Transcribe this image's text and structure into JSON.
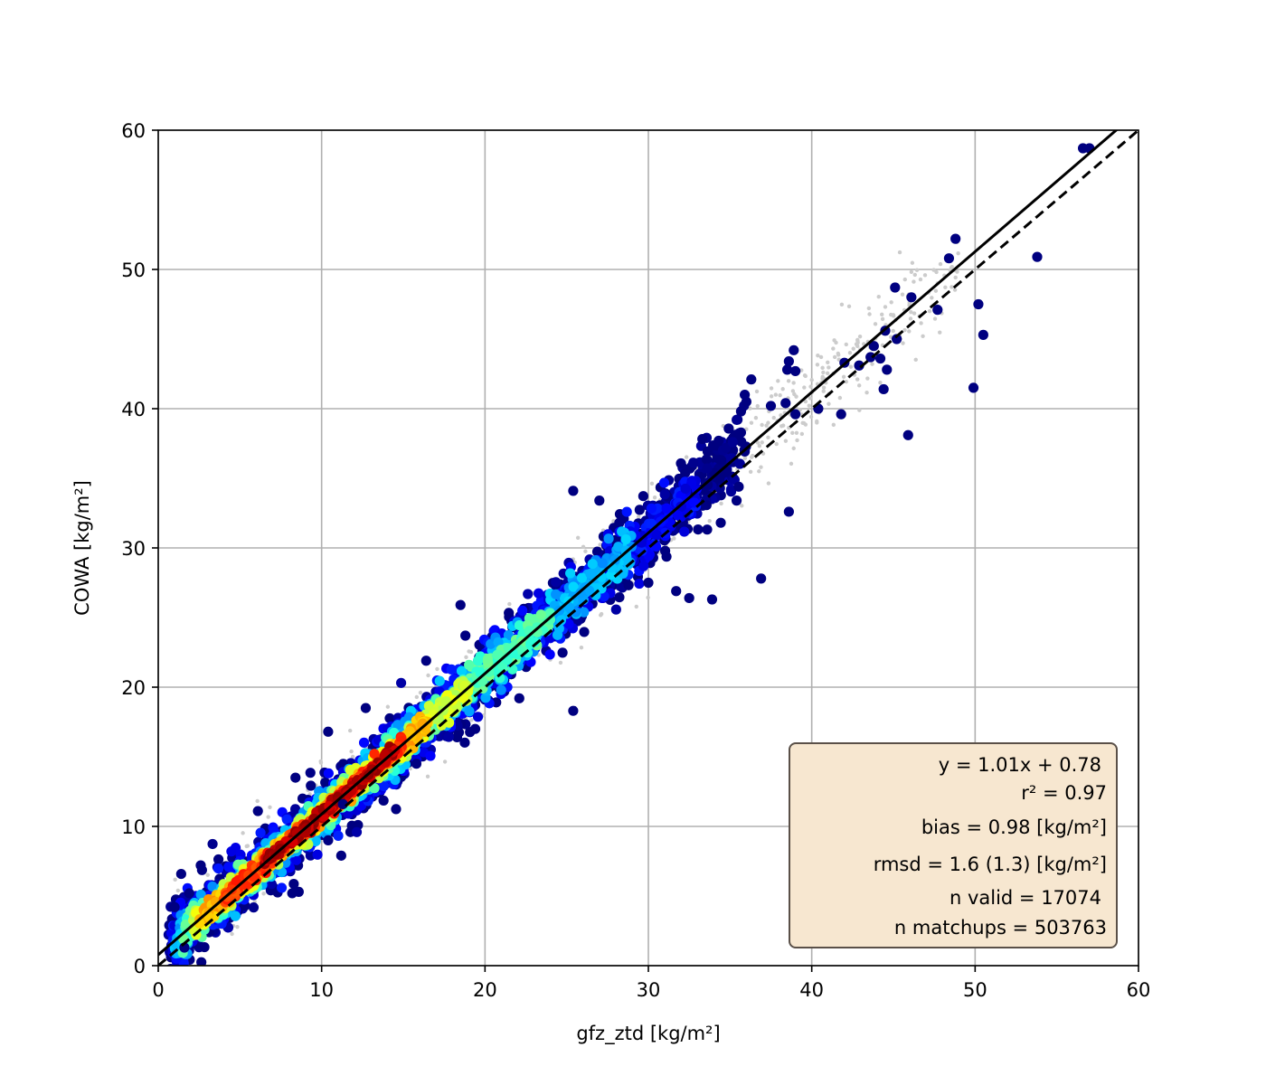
{
  "chart_data": {
    "type": "scatter",
    "title": "",
    "xlabel": "gfz_ztd [kg/m²]",
    "ylabel": "COWA [kg/m²]",
    "xlim": [
      0,
      60
    ],
    "ylim": [
      0,
      60
    ],
    "xticks": [
      "0",
      "10",
      "20",
      "30",
      "40",
      "50",
      "60"
    ],
    "yticks": [
      "0",
      "10",
      "20",
      "30",
      "40",
      "50",
      "60"
    ],
    "grid": true,
    "colormap": "jet (point density)",
    "fit_line": {
      "slope": 1.01,
      "intercept": 0.78,
      "style": "solid",
      "color": "#000000"
    },
    "identity_line": {
      "slope": 1.0,
      "intercept": 0.0,
      "style": "dashed",
      "color": "#000000"
    },
    "stats_box": {
      "placement": "bottom-right",
      "fill": "#f7e7d0",
      "lines": [
        "y = 1.01x + 0.78",
        "r² = 0.97",
        "bias = 0.98 [kg/m²]",
        "rmsd = 1.6 (1.3) [kg/m²]",
        "n valid = 17074",
        "n matchups = 503763"
      ]
    },
    "outlier_points": [
      [
        56.6,
        58.7
      ],
      [
        57.0,
        58.7
      ],
      [
        48.8,
        52.2
      ],
      [
        48.4,
        50.8
      ],
      [
        53.8,
        50.9
      ],
      [
        50.2,
        47.5
      ],
      [
        50.5,
        45.3
      ],
      [
        49.9,
        41.5
      ],
      [
        45.9,
        38.1
      ],
      [
        45.1,
        48.7
      ],
      [
        46.1,
        48.0
      ],
      [
        44.5,
        45.6
      ],
      [
        43.8,
        44.5
      ],
      [
        44.2,
        43.6
      ],
      [
        43.6,
        43.7
      ],
      [
        44.6,
        42.8
      ],
      [
        42.9,
        43.1
      ],
      [
        42.0,
        43.3
      ],
      [
        44.4,
        41.4
      ],
      [
        41.8,
        39.6
      ],
      [
        47.7,
        47.1
      ],
      [
        45.2,
        45.0
      ],
      [
        38.9,
        44.2
      ],
      [
        38.6,
        43.4
      ],
      [
        38.5,
        42.8
      ],
      [
        39.0,
        42.7
      ],
      [
        36.3,
        42.1
      ],
      [
        35.9,
        41.0
      ],
      [
        36.0,
        40.5
      ],
      [
        37.5,
        40.2
      ],
      [
        38.4,
        40.4
      ],
      [
        40.4,
        40.0
      ],
      [
        39.0,
        39.6
      ],
      [
        38.6,
        32.6
      ],
      [
        36.9,
        27.8
      ],
      [
        35.4,
        33.4
      ],
      [
        25.4,
        34.1
      ],
      [
        27.0,
        33.4
      ],
      [
        18.5,
        25.9
      ],
      [
        18.8,
        23.7
      ],
      [
        16.4,
        21.9
      ],
      [
        12.7,
        18.5
      ],
      [
        10.4,
        16.8
      ],
      [
        8.4,
        13.5
      ],
      [
        6.1,
        11.1
      ],
      [
        2.6,
        7.2
      ],
      [
        1.9,
        5.2
      ],
      [
        1.0,
        4.2
      ],
      [
        33.9,
        26.3
      ],
      [
        31.7,
        26.9
      ],
      [
        32.5,
        26.4
      ],
      [
        30.0,
        27.5
      ],
      [
        25.4,
        18.3
      ],
      [
        22.1,
        19.2
      ],
      [
        19.4,
        17.0
      ],
      [
        15.8,
        14.5
      ],
      [
        11.3,
        11.6
      ],
      [
        10.4,
        9.0
      ],
      [
        11.2,
        7.9
      ],
      [
        8.2,
        5.2
      ],
      [
        8.6,
        5.3
      ],
      [
        1.6,
        1.3
      ]
    ],
    "density_bands": [
      {
        "x_range": [
          0.6,
          36.0
        ],
        "offset_sd": 1.35,
        "level": 0.0,
        "count": 1100
      },
      {
        "x_range": [
          0.8,
          33.0
        ],
        "offset_sd": 1.0,
        "level": 0.12,
        "count": 900
      },
      {
        "x_range": [
          1.0,
          29.0
        ],
        "offset_sd": 0.75,
        "level": 0.3,
        "count": 700
      },
      {
        "x_range": [
          1.5,
          24.0
        ],
        "offset_sd": 0.55,
        "level": 0.45,
        "count": 560
      },
      {
        "x_range": [
          2.0,
          19.0
        ],
        "offset_sd": 0.45,
        "level": 0.58,
        "count": 460
      },
      {
        "x_range": [
          2.5,
          16.5
        ],
        "offset_sd": 0.35,
        "level": 0.7,
        "count": 360
      },
      {
        "x_range": [
          4.0,
          15.0
        ],
        "offset_sd": 0.28,
        "level": 0.82,
        "count": 260
      },
      {
        "x_range": [
          6.5,
          14.5
        ],
        "offset_sd": 0.2,
        "level": 0.95,
        "count": 170
      }
    ]
  }
}
